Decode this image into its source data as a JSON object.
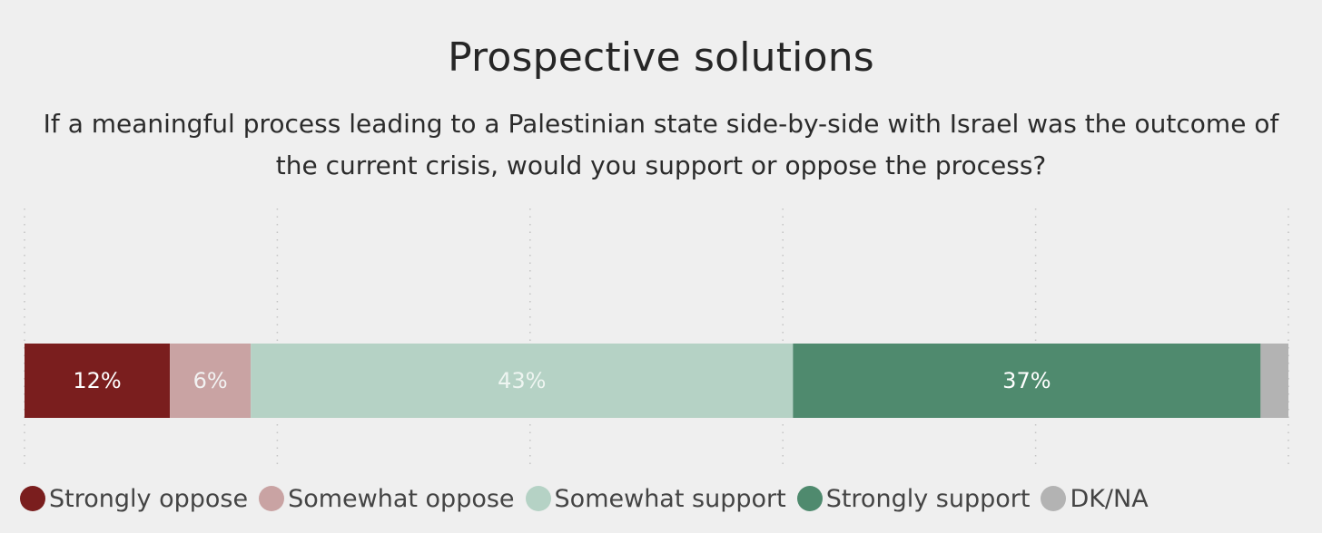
{
  "chart_data": {
    "type": "bar",
    "orientation": "horizontal-stacked",
    "title": "Prospective solutions",
    "subtitle": "If a meaningful process leading to a Palestinian state side-by-side with Israel was the outcome of the current crisis, would you support or oppose the process?",
    "xlim": [
      0,
      100
    ],
    "grid": true,
    "legend_position": "bottom",
    "series": [
      {
        "name": "Strongly oppose",
        "value": 11.5,
        "label": "12%",
        "color": "#7a1e1e",
        "label_color": "#ffffff"
      },
      {
        "name": "Somewhat oppose",
        "value": 6.4,
        "label": "6%",
        "color": "#c9a3a3",
        "label_color": "#f2f2f2"
      },
      {
        "name": "Somewhat support",
        "value": 42.9,
        "label": "43%",
        "color": "#b5d2c5",
        "label_color": "#eef5f1"
      },
      {
        "name": "Strongly support",
        "value": 37.0,
        "label": "37%",
        "color": "#4f8a6e",
        "label_color": "#ffffff"
      },
      {
        "name": "DK/NA",
        "value": 2.2,
        "label": "",
        "color": "#b3b3b3",
        "label_color": "#ffffff"
      }
    ]
  }
}
